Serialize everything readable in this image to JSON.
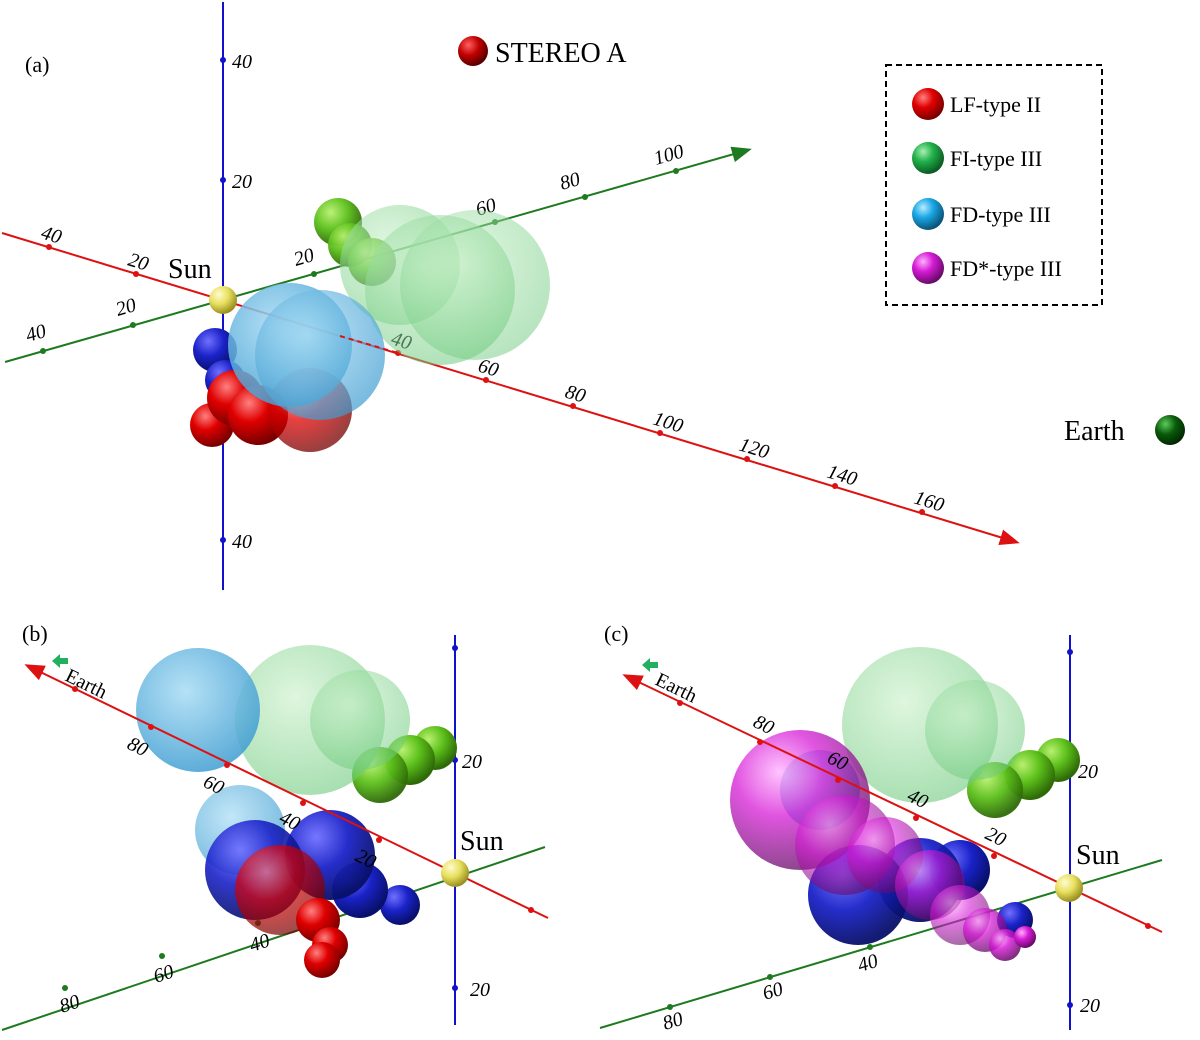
{
  "panel_a": {
    "label": "(a)",
    "sun_label": "Sun",
    "stereo_label": "STEREO A",
    "earth_label": "Earth",
    "vertical_ticks": [
      "40",
      "20",
      "40"
    ],
    "red_axis_ticks": [
      "40",
      "20",
      "40",
      "60",
      "80",
      "100",
      "120",
      "140",
      "160"
    ],
    "green_axis_ticks": [
      "40",
      "20",
      "20",
      "60",
      "80",
      "100"
    ]
  },
  "legend": {
    "items": [
      {
        "label": "LF-type II",
        "color": "#e00000"
      },
      {
        "label": "FI-type III",
        "color": "#22b14c"
      },
      {
        "label": "FD-type III",
        "color": "#1aa7e6"
      },
      {
        "label": "FD*-type III",
        "color": "#d61bd6"
      }
    ]
  },
  "panel_b": {
    "label": "(b)",
    "earth_label": "Earth",
    "sun_label": "Sun",
    "red_axis_ticks": [
      "80",
      "60",
      "40",
      "20"
    ],
    "green_axis_ticks": [
      "80",
      "60",
      "40"
    ],
    "vertical_ticks": [
      "20",
      "20"
    ]
  },
  "panel_c": {
    "label": "(c)",
    "earth_label": "Earth",
    "sun_label": "Sun",
    "red_axis_ticks": [
      "80",
      "60",
      "40",
      "20"
    ],
    "green_axis_ticks": [
      "80",
      "60",
      "40"
    ],
    "vertical_ticks": [
      "20",
      "20"
    ]
  },
  "colors": {
    "red_axis": "#dd1111",
    "green_axis": "#1e7a1e",
    "blue_axis": "#1111cc",
    "sun": "#e8e060",
    "stereo": "#c00000",
    "earth": "#0a5a0a"
  }
}
